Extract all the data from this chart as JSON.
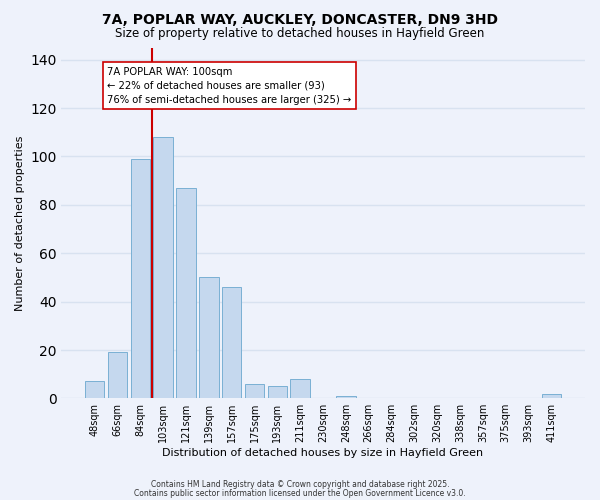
{
  "title": "7A, POPLAR WAY, AUCKLEY, DONCASTER, DN9 3HD",
  "subtitle": "Size of property relative to detached houses in Hayfield Green",
  "xlabel": "Distribution of detached houses by size in Hayfield Green",
  "ylabel": "Number of detached properties",
  "bar_color": "#c5d8ee",
  "bar_edge_color": "#7ab0d4",
  "background_color": "#eef2fb",
  "grid_color": "#d8e2f0",
  "categories": [
    "48sqm",
    "66sqm",
    "84sqm",
    "103sqm",
    "121sqm",
    "139sqm",
    "157sqm",
    "175sqm",
    "193sqm",
    "211sqm",
    "230sqm",
    "248sqm",
    "266sqm",
    "284sqm",
    "302sqm",
    "320sqm",
    "338sqm",
    "357sqm",
    "375sqm",
    "393sqm",
    "411sqm"
  ],
  "values": [
    7,
    19,
    99,
    108,
    87,
    50,
    46,
    6,
    5,
    8,
    0,
    1,
    0,
    0,
    0,
    0,
    0,
    0,
    0,
    0,
    2
  ],
  "ylim": [
    0,
    145
  ],
  "yticks": [
    0,
    20,
    40,
    60,
    80,
    100,
    120,
    140
  ],
  "vline_color": "#cc0000",
  "vline_index": 2.5,
  "annotation_title": "7A POPLAR WAY: 100sqm",
  "annotation_line1": "← 22% of detached houses are smaller (93)",
  "annotation_line2": "76% of semi-detached houses are larger (325) →",
  "footer_line1": "Contains HM Land Registry data © Crown copyright and database right 2025.",
  "footer_line2": "Contains public sector information licensed under the Open Government Licence v3.0."
}
